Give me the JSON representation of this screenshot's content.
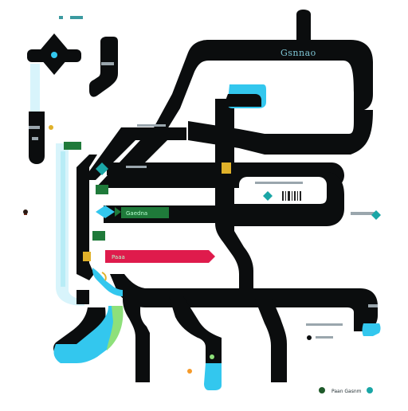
{
  "diagram": {
    "colors": {
      "track": "#0b0d0e",
      "cyan": "#33c7ee",
      "pale_cyan": "#d8f4fb",
      "green": "#1f7a3a",
      "red": "#df1b4c",
      "gold": "#e0b12a",
      "orange": "#f59a2a",
      "teal": "#1aa6a6",
      "gray": "#a9b0b5"
    },
    "labels": {
      "top_left_tag": "",
      "top_right_sign": "Gsnnao",
      "upper_mid_note": "",
      "lane1": "",
      "lane3": "Gaedna",
      "lane5": "Paaa",
      "right_note": "",
      "bottom_right_note": "Paan Gasnm",
      "left_note": "",
      "far_left_note": ""
    },
    "icons": {
      "diamond": "diamond-node-icon",
      "barcode": "barcode-icon"
    }
  }
}
